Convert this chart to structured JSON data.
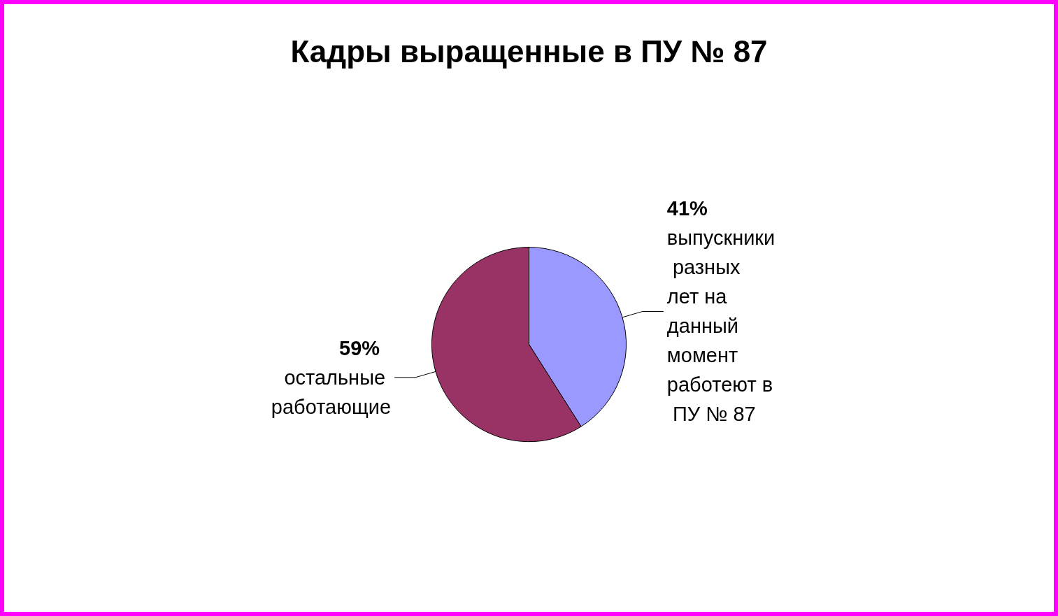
{
  "chart_data": {
    "type": "pie",
    "title": "Кадры выращенные в ПУ № 87",
    "categories": [
      "выпускники разных лет на данный момент работеют в ПУ № 87",
      "остальные работающие"
    ],
    "values": [
      41,
      59
    ],
    "colors": [
      "#9999ff",
      "#993366"
    ],
    "value_labels": [
      "41%",
      "59%"
    ],
    "legend": false
  }
}
